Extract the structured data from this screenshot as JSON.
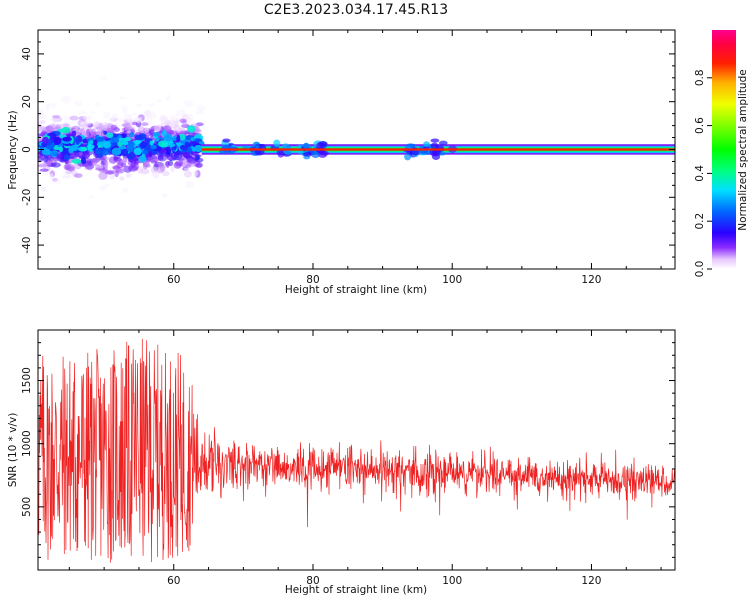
{
  "title": "C2E3.2023.034.17.45.R13",
  "chart_data": [
    {
      "type": "heatmap",
      "ylabel": "Frequency (Hz)",
      "xlabel": "Height of straight line (km)",
      "xlim": [
        40.5,
        132
      ],
      "ylim": [
        -50,
        50
      ],
      "xticks": [
        60,
        80,
        100,
        120
      ],
      "yticks": [
        -40,
        -20,
        0,
        20,
        40
      ],
      "colorbar": {
        "label": "Normalized spectral amplitude",
        "range": [
          0,
          1
        ],
        "ticks": [
          "0.0",
          "0.2",
          "0.4",
          "0.6",
          "0.8"
        ],
        "colormap": "gist_ncar"
      },
      "description_data": {
        "noisy_region_km": [
          40.5,
          64
        ],
        "noisy_spread_hz": 10,
        "steady_line_hz": 0,
        "steady_region_km": [
          64,
          132
        ],
        "clusters_km": [
          68,
          72,
          76,
          79,
          81,
          94,
          96,
          98
        ]
      }
    },
    {
      "type": "line",
      "ylabel": "SNR (10 * v/v)",
      "xlabel": "Height of straight line (km)",
      "xlim": [
        40.5,
        132
      ],
      "ylim": [
        0,
        1900
      ],
      "xticks": [
        60,
        80,
        100,
        120
      ],
      "yticks": [
        500,
        1000,
        1500
      ],
      "series": [
        {
          "color": "#ee2222",
          "profile": [
            {
              "x": 40.5,
              "mean": 900,
              "spread": 850
            },
            {
              "x": 50,
              "mean": 900,
              "spread": 850
            },
            {
              "x": 55,
              "mean": 950,
              "spread": 900
            },
            {
              "x": 62,
              "mean": 900,
              "spread": 800
            },
            {
              "x": 64,
              "mean": 850,
              "spread": 250
            },
            {
              "x": 70,
              "mean": 830,
              "spread": 150
            },
            {
              "x": 80,
              "mean": 820,
              "spread": 160
            },
            {
              "x": 90,
              "mean": 800,
              "spread": 150
            },
            {
              "x": 98,
              "mean": 780,
              "spread": 200
            },
            {
              "x": 100,
              "mean": 780,
              "spread": 140
            },
            {
              "x": 120,
              "mean": 720,
              "spread": 130
            },
            {
              "x": 132,
              "mean": 700,
              "spread": 120
            }
          ]
        }
      ]
    }
  ]
}
